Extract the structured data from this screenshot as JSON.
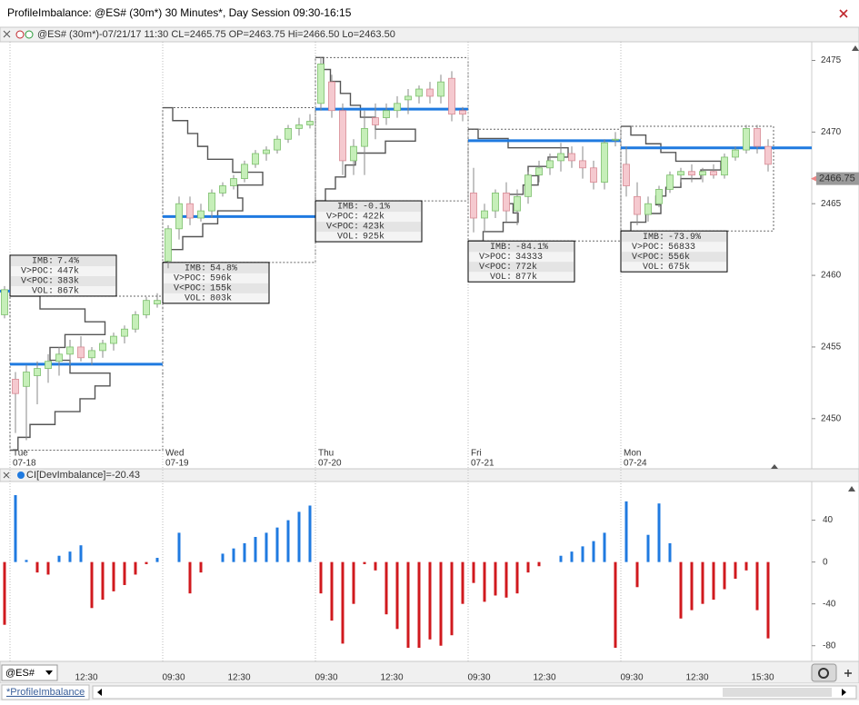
{
  "window": {
    "title": "ProfileImbalance: @ES# (30m*) 30 Minutes*, Day Session 09:30-16:15",
    "symbol": "@ES#",
    "tab": "*ProfileImbalance"
  },
  "chart_data": [
    {
      "type": "candlestick",
      "header": "@ES# (30m*)-07/21/17 11:30 CL=2465.75 OP=2463.75 Hi=2466.50 Lo=2463.50",
      "open": [
        2457.25,
        2452.75,
        2452.25,
        2453,
        2453.5,
        2454,
        2454.5,
        2455,
        2454.25,
        2454.75,
        2455.25,
        2455.75,
        2456.25,
        2457.25,
        2458,
        2461,
        2463.25,
        2465,
        2464,
        2464.5,
        2465.75,
        2466.25,
        2466.75,
        2467.75,
        2468.5,
        2468.75,
        2469.5,
        2470.25,
        2470.5,
        2472,
        2473.5,
        2471.5,
        2468,
        2469,
        2471,
        2471,
        2471.5,
        2472.25,
        2472.5,
        2473,
        2472.5,
        2473.75,
        2471.5,
        2465.75,
        2464,
        2464.5,
        2465.75,
        2464.5,
        2465.5,
        2467,
        2467.5,
        2468,
        2468.5,
        2468,
        2467.5,
        2466.5,
        2469.5,
        2467.75,
        2465.5,
        2464.25,
        2465,
        2466,
        2467,
        2467.25,
        2467,
        2467.25,
        2467,
        2468.25,
        2468.75,
        2470.25,
        2469
      ],
      "high": [
        2459.25,
        2453.25,
        2453.75,
        2454,
        2454.5,
        2455,
        2455.5,
        2455.75,
        2455,
        2455.5,
        2456,
        2456.5,
        2457.5,
        2458.5,
        2458.75,
        2463.5,
        2465.5,
        2465.5,
        2465,
        2466,
        2466.5,
        2467,
        2468,
        2468.75,
        2469,
        2469.75,
        2470.5,
        2471,
        2471.25,
        2475.25,
        2474,
        2472,
        2469.5,
        2471.5,
        2472,
        2472,
        2472.5,
        2473,
        2473.25,
        2473.5,
        2474,
        2474.25,
        2471.75,
        2467.5,
        2465,
        2466,
        2466.5,
        2466,
        2467.25,
        2468,
        2468.5,
        2469.25,
        2469,
        2469,
        2468,
        2469.5,
        2470,
        2469,
        2466.5,
        2465.5,
        2466.25,
        2467.25,
        2467.5,
        2467.75,
        2467.5,
        2467.75,
        2468.5,
        2469,
        2470.5,
        2470.5,
        2469.5
      ],
      "low": [
        2457,
        2449,
        2448.5,
        2451,
        2452.5,
        2453,
        2453.75,
        2454,
        2453.75,
        2454.25,
        2454.75,
        2455.25,
        2456,
        2457,
        2457.75,
        2460.5,
        2462.5,
        2463.5,
        2463.75,
        2464,
        2465.5,
        2466,
        2466.5,
        2467.5,
        2468,
        2468.5,
        2469.25,
        2469.75,
        2470.25,
        2471.5,
        2471,
        2467,
        2467,
        2467,
        2469.5,
        2470.5,
        2471,
        2471.25,
        2472,
        2472,
        2472,
        2470.75,
        2470.75,
        2463,
        2463,
        2464,
        2463.75,
        2463.5,
        2465,
        2466.5,
        2467,
        2467.25,
        2467.5,
        2466.75,
        2466,
        2466,
        2469,
        2465.5,
        2463.5,
        2463.75,
        2464.75,
        2465.75,
        2466.5,
        2466.5,
        2466.5,
        2466.75,
        2466.75,
        2468,
        2468.5,
        2468.5,
        2467.25
      ],
      "close": [
        2459,
        2451.75,
        2453.25,
        2453.5,
        2454,
        2454.5,
        2455,
        2454.25,
        2454.75,
        2455.25,
        2455.75,
        2456.25,
        2457.25,
        2458.25,
        2458.25,
        2463.25,
        2465,
        2464,
        2464.5,
        2465.75,
        2466.25,
        2466.75,
        2467.75,
        2468.5,
        2468.75,
        2469.5,
        2470.25,
        2470.5,
        2470.75,
        2474.75,
        2471.5,
        2468,
        2469,
        2470.25,
        2470.5,
        2471.5,
        2472,
        2472.5,
        2473,
        2472.5,
        2473.5,
        2471.25,
        2471.25,
        2464,
        2464.5,
        2465.75,
        2464.5,
        2465.5,
        2467,
        2467.5,
        2468,
        2468.5,
        2468,
        2467.5,
        2466.5,
        2469.25,
        2469.5,
        2466.25,
        2464.25,
        2465,
        2466,
        2467,
        2467.25,
        2467,
        2467.25,
        2467,
        2468.25,
        2468.75,
        2470.25,
        2469,
        2467.75
      ],
      "ylim": [
        2446.5,
        2476.3
      ],
      "yticks": [
        2450,
        2455,
        2460,
        2465,
        2470,
        2475
      ],
      "last_price": 2466.75,
      "prior_poc": 2458.9,
      "colors": {
        "up": "#c6efb9",
        "down": "#f5c9cf",
        "poc": "#1f7ae0"
      },
      "stat_labels": [
        "IMB:",
        "V>POC:",
        "V<POC:",
        "VOL:"
      ],
      "sessions": [
        {
          "name": "Tue",
          "date": "07-18",
          "poc": 2453.8,
          "range": [
            2447.8,
            2458.55
          ],
          "profile": [
            8,
            20,
            45,
            70,
            85,
            100,
            60,
            40,
            55,
            95,
            75,
            30
          ],
          "stats": [
            "7.4%",
            "447k",
            "383k",
            "867k"
          ]
        },
        {
          "name": "Wed",
          "date": "07-19",
          "poc": 2464.1,
          "range": [
            2460.9,
            2471.7
          ],
          "profile": [
            5,
            20,
            40,
            55,
            80,
            75,
            100,
            70,
            45,
            35,
            25,
            10
          ],
          "stats": [
            "54.8%",
            "596k",
            "155k",
            "803k"
          ]
        },
        {
          "name": "Thu",
          "date": "07-20",
          "poc": 2471.6,
          "range": [
            2465.2,
            2475.2
          ],
          "profile": [
            10,
            20,
            30,
            40,
            70,
            100,
            60,
            45,
            35,
            25,
            15,
            8
          ],
          "stats": [
            "-0.1%",
            "422k",
            "423k",
            "925k"
          ]
        },
        {
          "name": "Fri",
          "date": "07-21",
          "poc": 2469.4,
          "range": [
            2462.4,
            2470.2
          ],
          "profile": [
            15,
            35,
            50,
            45,
            40,
            55,
            70,
            60,
            80,
            100,
            40,
            10
          ],
          "stats": [
            "-84.1%",
            "34333",
            "772k",
            "877k"
          ]
        },
        {
          "name": "Mon",
          "date": "07-24",
          "poc": 2468.9,
          "range": [
            2463.1,
            2470.4
          ],
          "profile": [
            10,
            25,
            40,
            35,
            45,
            60,
            80,
            100,
            55,
            40,
            25,
            10
          ],
          "stats": [
            "-73.9%",
            "56833",
            "556k",
            "675k"
          ]
        }
      ]
    },
    {
      "type": "bar",
      "title": "CI[DevImbalance]=-20.43",
      "categories": [
        null,
        null,
        null,
        null,
        null,
        null,
        null,
        "12:30",
        null,
        null,
        null,
        null,
        null,
        null,
        null,
        "09:30",
        null,
        null,
        null,
        null,
        null,
        "12:30",
        null,
        null,
        null,
        null,
        null,
        null,
        null,
        "09:30",
        null,
        null,
        null,
        null,
        null,
        "12:30",
        null,
        null,
        null,
        null,
        null,
        null,
        null,
        "09:30",
        null,
        null,
        null,
        null,
        null,
        "12:30",
        null,
        null,
        null,
        null,
        null,
        null,
        null,
        "09:30",
        null,
        null,
        null,
        null,
        null,
        "12:30",
        null,
        null,
        null,
        null,
        null,
        "15:30",
        null
      ],
      "values": [
        -60,
        64,
        2,
        -10,
        -12,
        6,
        10,
        16,
        -44,
        -36,
        -28,
        -22,
        -12,
        -2,
        4,
        0,
        28,
        -30,
        -10,
        0,
        8,
        13,
        18,
        24,
        28,
        33,
        40,
        48,
        54,
        -30,
        -56,
        -78,
        -40,
        -2,
        -8,
        -50,
        -64,
        -82,
        -82,
        -74,
        -80,
        -70,
        -40,
        -20,
        -38,
        -32,
        -34,
        -30,
        -10,
        -4,
        0,
        6,
        10,
        15,
        20,
        28,
        -82,
        58,
        -24,
        26,
        56,
        18,
        -54,
        -46,
        -40,
        -36,
        -26,
        -16,
        -8,
        -46,
        -73
      ],
      "ylim": [
        -95,
        77
      ],
      "yticks": [
        40,
        0,
        -40,
        -80
      ],
      "colors": {
        "positive": "#1f7ae0",
        "negative": "#d0191e"
      }
    }
  ]
}
